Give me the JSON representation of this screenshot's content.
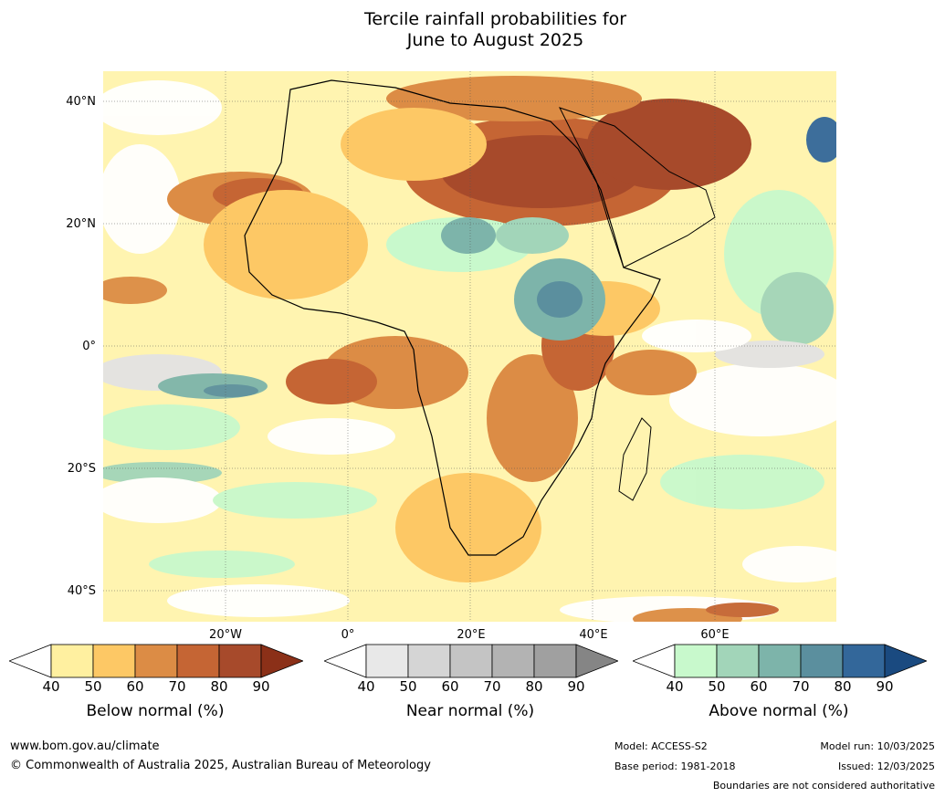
{
  "title": {
    "line1": "Tercile rainfall probabilities for",
    "line2": "June to August 2025"
  },
  "map": {
    "lat_labels": [
      "40°N",
      "20°N",
      "0°",
      "20°S",
      "40°S"
    ],
    "lon_labels": [
      "20°W",
      "0°",
      "20°E",
      "40°E",
      "60°E"
    ],
    "region": "Africa"
  },
  "colorbars": [
    {
      "label": "Below normal (%)",
      "ticks": [
        "40",
        "50",
        "60",
        "70",
        "80",
        "90"
      ],
      "colors": [
        "#ffffff",
        "#fff0a0",
        "#fdc865",
        "#dc8c45",
        "#c56534",
        "#a74a2b",
        "#8b3018"
      ]
    },
    {
      "label": "Near normal (%)",
      "ticks": [
        "40",
        "50",
        "60",
        "70",
        "80",
        "90"
      ],
      "colors": [
        "#ffffff",
        "#e8e8e8",
        "#d5d5d5",
        "#c4c4c4",
        "#b3b3b3",
        "#a0a0a0",
        "#858585"
      ]
    },
    {
      "label": "Above normal (%)",
      "ticks": [
        "40",
        "50",
        "60",
        "70",
        "80",
        "90"
      ],
      "colors": [
        "#ffffff",
        "#c8f9cc",
        "#a2d5b9",
        "#7db4aa",
        "#5b8f9e",
        "#33679a",
        "#1a4a80"
      ]
    }
  ],
  "footer": {
    "website": "www.bom.gov.au/climate",
    "copyright": "© Commonwealth of Australia 2025, Australian Bureau of Meteorology",
    "model": "Model: ACCESS-S2",
    "base_period": "Base period: 1981-2018",
    "model_run": "Model run: 10/03/2025",
    "issued": "Issued: 12/03/2025",
    "disclaimer": "Boundaries are not considered authoritative"
  }
}
